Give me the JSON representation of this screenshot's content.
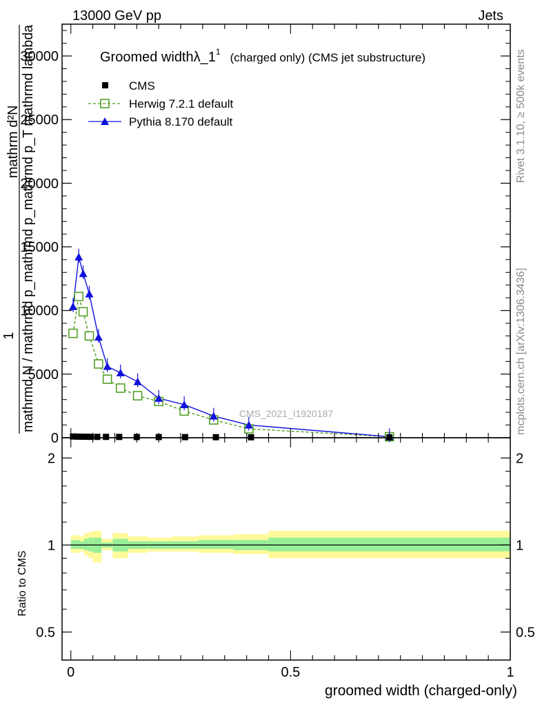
{
  "header": {
    "left": "13000 GeV pp",
    "right": "Jets"
  },
  "side_labels": {
    "rivet": "Rivet 3.1.10, ≥ 500k events",
    "mcplots": "mcplots.cern.ch [arXiv:1306.3436]"
  },
  "watermark": "CMS_2021_I1920187",
  "colors": {
    "cms": "#000000",
    "herwig": "#4a9a1a",
    "pythia": "#1010dd",
    "band_outer": "#fffa99",
    "band_inner": "#99ee99"
  },
  "chart_data": [
    {
      "type": "line",
      "title": "Groomed widthλ_1",
      "title_sup": "1",
      "title_suffix": "(charged only) (CMS jet substructure)",
      "ylabel_num": "1",
      "ylabel_den": "mathrmd N / mathrmd p_mathrmd p_mathrmd p_T mathrmd lambda",
      "ylabel_top": "mathrm d²N",
      "ylim": [
        0,
        32500
      ],
      "yticks": [
        0,
        5000,
        10000,
        15000,
        20000,
        25000,
        30000
      ],
      "ytick_labels": [
        "0",
        "5000",
        "10000",
        "15000",
        "20000",
        "25000",
        "30000"
      ],
      "xlim": [
        -0.02,
        1.0
      ],
      "legend": {
        "position": "top-left"
      },
      "series": [
        {
          "name": "CMS",
          "marker": "square",
          "x": [
            0.005,
            0.015,
            0.025,
            0.035,
            0.045,
            0.06,
            0.08,
            0.11,
            0.15,
            0.2,
            0.26,
            0.33,
            0.41,
            0.725
          ],
          "y": [
            70,
            60,
            55,
            50,
            45,
            40,
            40,
            35,
            30,
            25,
            20,
            15,
            10,
            5
          ]
        },
        {
          "name": "Herwig 7.2.1 default",
          "marker": "open-square",
          "x": [
            0.005,
            0.018,
            0.028,
            0.042,
            0.063,
            0.083,
            0.113,
            0.152,
            0.2,
            0.258,
            0.325,
            0.405,
            0.725
          ],
          "y": [
            8200,
            11100,
            9900,
            8000,
            5800,
            4600,
            3900,
            3300,
            2850,
            2100,
            1400,
            700,
            80
          ]
        },
        {
          "name": "Pythia 8.170 default",
          "marker": "triangle",
          "x": [
            0.005,
            0.018,
            0.028,
            0.042,
            0.063,
            0.083,
            0.113,
            0.152,
            0.2,
            0.258,
            0.325,
            0.405,
            0.725
          ],
          "y": [
            10300,
            14200,
            12900,
            11300,
            7900,
            5600,
            5100,
            4400,
            3100,
            2600,
            1700,
            1000,
            80
          ]
        }
      ]
    },
    {
      "type": "line",
      "ylabel": "Ratio to CMS",
      "xlabel": "groomed width (charged-only)",
      "xlim": [
        -0.02,
        1.0
      ],
      "xticks": [
        0,
        0.5,
        1
      ],
      "xtick_labels": [
        "0",
        "0.5",
        "1"
      ],
      "ylim": [
        0.4,
        2.35
      ],
      "yticks": [
        0.5,
        1,
        2
      ],
      "ytick_labels": [
        "0.5",
        "1",
        "2"
      ],
      "series": [
        {
          "name": "CMS",
          "x": [
            0,
            1
          ],
          "y": [
            1,
            1
          ]
        }
      ],
      "bands": {
        "edges": [
          0,
          0.01,
          0.02,
          0.03,
          0.04,
          0.05,
          0.07,
          0.095,
          0.13,
          0.175,
          0.23,
          0.29,
          0.37,
          0.45,
          1.0
        ],
        "outer": [
          [
            0.94,
            1.08
          ],
          [
            0.94,
            1.08
          ],
          [
            0.95,
            1.07
          ],
          [
            0.92,
            1.1
          ],
          [
            0.9,
            1.11
          ],
          [
            0.87,
            1.12
          ],
          [
            0.96,
            1.05
          ],
          [
            0.9,
            1.1
          ],
          [
            0.94,
            1.07
          ],
          [
            0.95,
            1.06
          ],
          [
            0.95,
            1.07
          ],
          [
            0.94,
            1.08
          ],
          [
            0.93,
            1.09
          ],
          [
            0.9,
            1.12
          ]
        ],
        "inner": [
          [
            0.97,
            1.04
          ],
          [
            0.97,
            1.04
          ],
          [
            0.97,
            1.03
          ],
          [
            0.96,
            1.05
          ],
          [
            0.95,
            1.06
          ],
          [
            0.94,
            1.06
          ],
          [
            0.98,
            1.02
          ],
          [
            0.95,
            1.05
          ],
          [
            0.97,
            1.03
          ],
          [
            0.97,
            1.03
          ],
          [
            0.97,
            1.03
          ],
          [
            0.97,
            1.04
          ],
          [
            0.96,
            1.04
          ],
          [
            0.95,
            1.06
          ]
        ]
      }
    }
  ]
}
